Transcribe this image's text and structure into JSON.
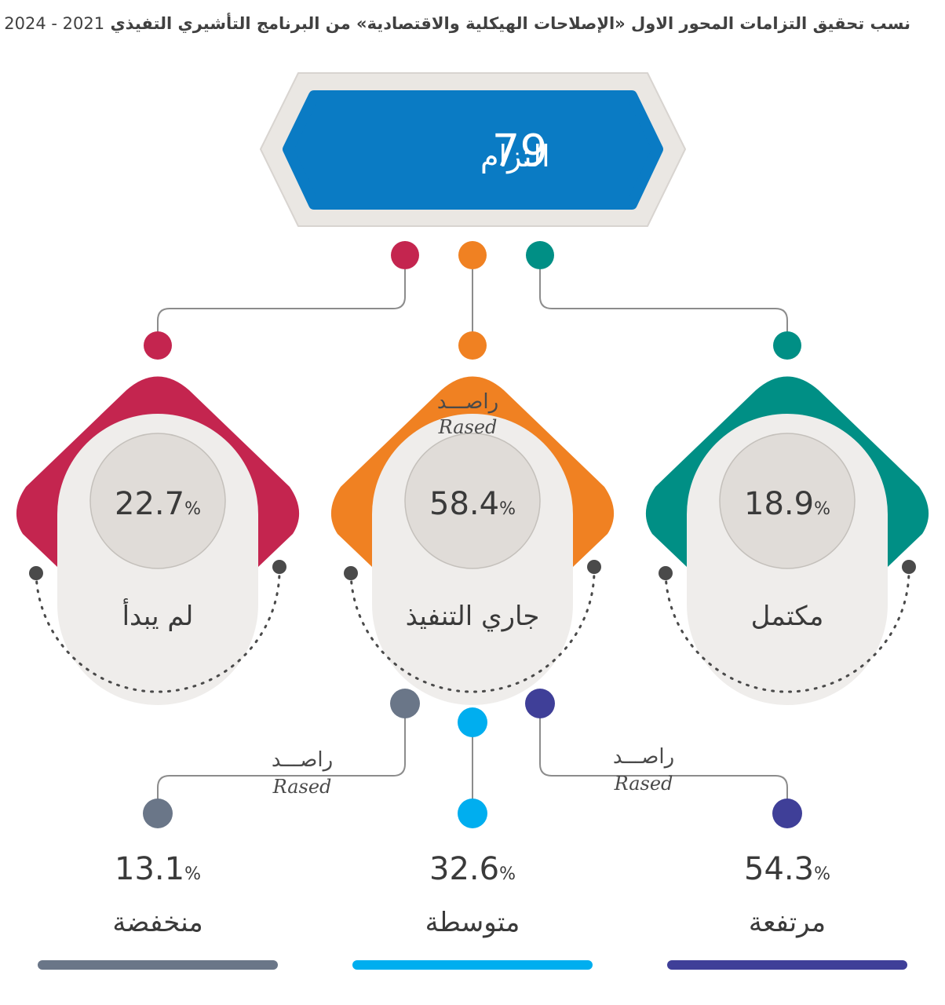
{
  "title": {
    "text": "نسب تحقيق التزامات المحور الاول «الإصلاحات الهيكلية والاقتصادية» من البرنامج التأشيري التفيذي",
    "years": "2021 - 2024"
  },
  "total": {
    "number": "79",
    "label": "التزام"
  },
  "status": [
    {
      "value": "22.7",
      "unit": "%",
      "label": "لم يبدأ",
      "color": "#c4254f"
    },
    {
      "value": "58.4",
      "unit": "%",
      "label": "جاري التنفيذ",
      "color": "#f08122"
    },
    {
      "value": "18.9",
      "unit": "%",
      "label": "مكتمل",
      "color": "#008f85"
    }
  ],
  "levels": [
    {
      "value": "13.1",
      "unit": "%",
      "label": "منخفضة",
      "color": "#6a7688"
    },
    {
      "value": "32.6",
      "unit": "%",
      "label": "متوسطة",
      "color": "#00aeef"
    },
    {
      "value": "54.3",
      "unit": "%",
      "label": "مرتفعة",
      "color": "#3f3f98"
    }
  ],
  "watermark": {
    "arabic": "راصـــد",
    "latin": "Rased"
  },
  "colors": {
    "blue_box": "#0a7bc4",
    "outer_box": "#eae7e3",
    "inner_circle": "#e0dcd8",
    "card": "#efedeb",
    "connector": "#8c8c8c"
  }
}
